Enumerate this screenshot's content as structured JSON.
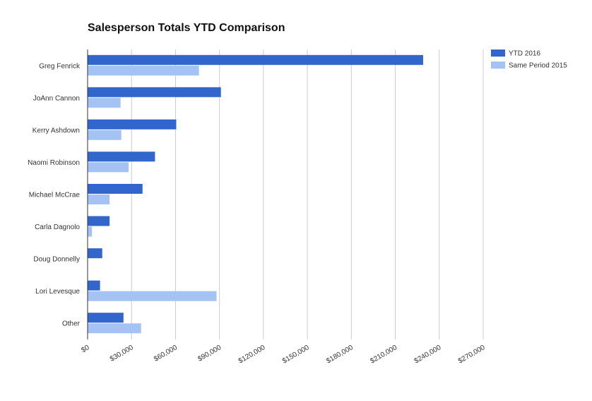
{
  "chart_data": {
    "type": "bar",
    "orientation": "horizontal",
    "title": "Salesperson Totals YTD Comparison",
    "xlabel": "",
    "ylabel": "",
    "xlim": [
      0,
      270000
    ],
    "grid": true,
    "legend_position": "top-right",
    "categories": [
      "Greg Fenrick",
      "JoAnn Cannon",
      "Kerry Ashdown",
      "Naomi Robinson",
      "Michael McCrae",
      "Carla Dagnolo",
      "Doug Donnelly",
      "Lori Levesque",
      "Other"
    ],
    "series": [
      {
        "name": "YTD 2016",
        "color": "#3366cc",
        "values": [
          229000,
          91000,
          60500,
          46000,
          37500,
          15000,
          10000,
          8500,
          24500
        ]
      },
      {
        "name": "Same Period 2015",
        "color": "#a4c2f4",
        "values": [
          76000,
          22500,
          23000,
          28000,
          15000,
          3000,
          0,
          88000,
          36500
        ]
      }
    ],
    "ticks": [
      {
        "value": 0,
        "label": "$0"
      },
      {
        "value": 30000,
        "label": "$30,000"
      },
      {
        "value": 60000,
        "label": "$60,000"
      },
      {
        "value": 90000,
        "label": "$90,000"
      },
      {
        "value": 120000,
        "label": "$120,000"
      },
      {
        "value": 150000,
        "label": "$150,000"
      },
      {
        "value": 180000,
        "label": "$180,000"
      },
      {
        "value": 210000,
        "label": "$210,000"
      },
      {
        "value": 240000,
        "label": "$240,000"
      },
      {
        "value": 270000,
        "label": "$270,000"
      }
    ]
  }
}
